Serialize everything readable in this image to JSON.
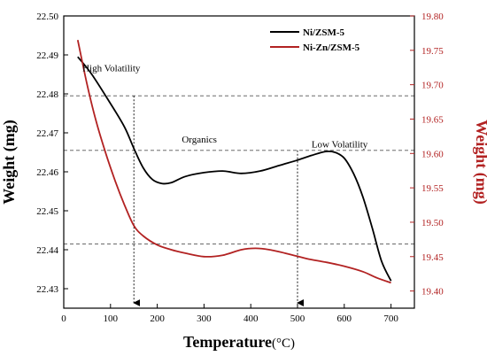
{
  "chart_data": {
    "type": "line",
    "xlabel": "Temperature",
    "xlabel_unit": "(°C)",
    "ylabel_left": "Weight (mg)",
    "ylabel_right": "Weight (mg)",
    "xlim": [
      0,
      750
    ],
    "ylim_left": [
      22.425,
      22.5
    ],
    "ylim_right": [
      19.375,
      19.8
    ],
    "x_ticks": [
      "0",
      "100",
      "200",
      "300",
      "400",
      "500",
      "600",
      "700"
    ],
    "y_ticks_left": [
      "22.43",
      "22.44",
      "22.45",
      "22.46",
      "22.47",
      "22.48",
      "22.49",
      "22.50"
    ],
    "y_ticks_right": [
      "19.40",
      "19.45",
      "19.50",
      "19.55",
      "19.60",
      "19.65",
      "19.70",
      "19.75",
      "19.80"
    ],
    "series": [
      {
        "name": "Ni/ZSM-5",
        "color": "#000000",
        "axis": "left",
        "x": [
          30,
          60,
          100,
          130,
          150,
          170,
          190,
          210,
          230,
          260,
          300,
          340,
          380,
          420,
          460,
          500,
          530,
          560,
          580,
          600,
          620,
          640,
          660,
          680,
          700
        ],
        "y": [
          22.4895,
          22.485,
          22.4775,
          22.4715,
          22.466,
          22.461,
          22.458,
          22.457,
          22.4572,
          22.4588,
          22.4598,
          22.4602,
          22.4596,
          22.4602,
          22.4616,
          22.463,
          22.4642,
          22.4652,
          22.465,
          22.4635,
          22.4595,
          22.4535,
          22.4455,
          22.437,
          22.432
        ]
      },
      {
        "name": "Ni-Zn/ZSM-5",
        "color": "#b22222",
        "axis": "right",
        "x": [
          30,
          50,
          70,
          90,
          110,
          130,
          150,
          170,
          200,
          230,
          260,
          300,
          340,
          380,
          410,
          440,
          480,
          520,
          560,
          600,
          640,
          670,
          700
        ],
        "y": [
          19.765,
          19.7,
          19.645,
          19.6,
          19.56,
          19.525,
          19.495,
          19.48,
          19.467,
          19.46,
          19.455,
          19.45,
          19.452,
          19.46,
          19.462,
          19.46,
          19.454,
          19.447,
          19.442,
          19.436,
          19.428,
          19.419,
          19.412
        ]
      }
    ],
    "reference_lines": {
      "horizontal_left": [
        22.4795,
        22.4655,
        22.4415
      ],
      "vertical_x": [
        150,
        500
      ]
    },
    "annotations": [
      {
        "text": "High Volatility",
        "x": 40,
        "y": 22.4858
      },
      {
        "text": "Organics",
        "x": 290,
        "y": 22.4675
      },
      {
        "text": "Low Volatility",
        "x": 530,
        "y": 22.4662
      }
    ],
    "legend_position": "top-right"
  }
}
